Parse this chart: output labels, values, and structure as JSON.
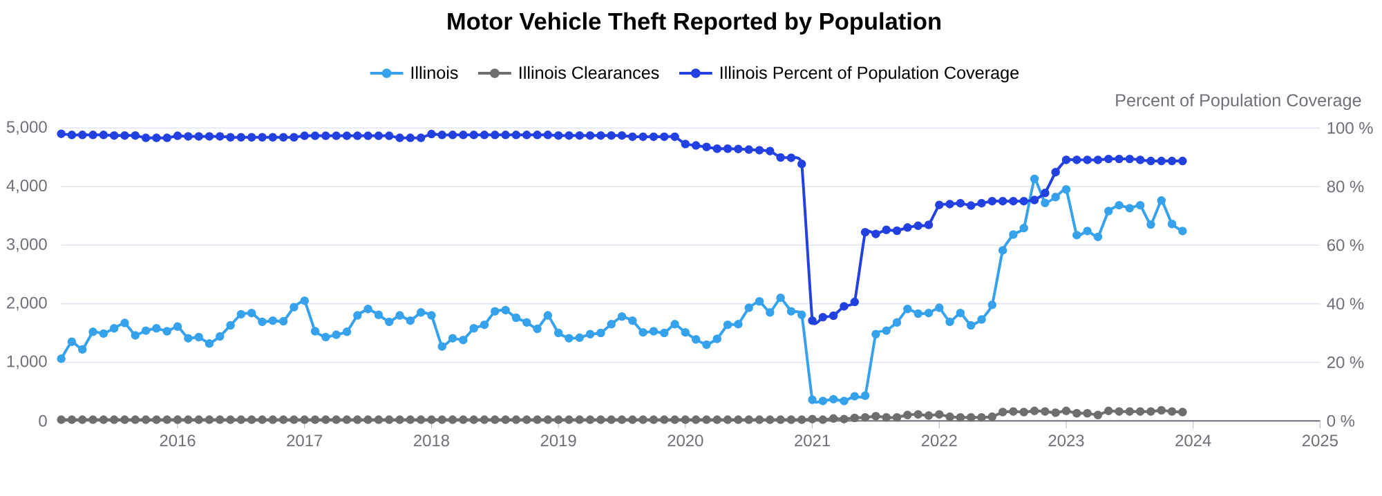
{
  "chart_data": {
    "type": "line",
    "title": "Motor Vehicle Theft Reported by Population",
    "y2label": "Percent of Population Coverage",
    "x": [
      "2015-02",
      "2015-03",
      "2015-04",
      "2015-05",
      "2015-06",
      "2015-07",
      "2015-08",
      "2015-09",
      "2015-10",
      "2015-11",
      "2015-12",
      "2016-01",
      "2016-02",
      "2016-03",
      "2016-04",
      "2016-05",
      "2016-06",
      "2016-07",
      "2016-08",
      "2016-09",
      "2016-10",
      "2016-11",
      "2016-12",
      "2017-01",
      "2017-02",
      "2017-03",
      "2017-04",
      "2017-05",
      "2017-06",
      "2017-07",
      "2017-08",
      "2017-09",
      "2017-10",
      "2017-11",
      "2017-12",
      "2018-01",
      "2018-02",
      "2018-03",
      "2018-04",
      "2018-05",
      "2018-06",
      "2018-07",
      "2018-08",
      "2018-09",
      "2018-10",
      "2018-11",
      "2018-12",
      "2019-01",
      "2019-02",
      "2019-03",
      "2019-04",
      "2019-05",
      "2019-06",
      "2019-07",
      "2019-08",
      "2019-09",
      "2019-10",
      "2019-11",
      "2019-12",
      "2020-01",
      "2020-02",
      "2020-03",
      "2020-04",
      "2020-05",
      "2020-06",
      "2020-07",
      "2020-08",
      "2020-09",
      "2020-10",
      "2020-11",
      "2020-12",
      "2021-01",
      "2021-02",
      "2021-03",
      "2021-04",
      "2021-05",
      "2021-06",
      "2021-07",
      "2021-08",
      "2021-09",
      "2021-10",
      "2021-11",
      "2021-12",
      "2022-01",
      "2022-02",
      "2022-03",
      "2022-04",
      "2022-05",
      "2022-06",
      "2022-07",
      "2022-08",
      "2022-09",
      "2022-10",
      "2022-11",
      "2022-12",
      "2023-01",
      "2023-02",
      "2023-03",
      "2023-04",
      "2023-05",
      "2023-06",
      "2023-07",
      "2023-08",
      "2023-09",
      "2023-10",
      "2023-11",
      "2023-12"
    ],
    "xlim": [
      "2015-02",
      "2025-01"
    ],
    "xticks": [
      "2016",
      "2017",
      "2018",
      "2019",
      "2020",
      "2021",
      "2022",
      "2023",
      "2024",
      "2025"
    ],
    "ylim": [
      0,
      5000
    ],
    "yticks": [
      0,
      {
        "value": 1000,
        "label": "1,000"
      },
      {
        "value": 2000,
        "label": "2,000"
      },
      {
        "value": 3000,
        "label": "3,000"
      },
      {
        "value": 4000,
        "label": "4,000"
      },
      {
        "value": 5000,
        "label": "5,000"
      }
    ],
    "y2lim": [
      0,
      100
    ],
    "y2ticks": [
      {
        "value": 0,
        "label": "0 %"
      },
      {
        "value": 20,
        "label": "20 %"
      },
      {
        "value": 40,
        "label": "40 %"
      },
      {
        "value": 60,
        "label": "60 %"
      },
      {
        "value": 80,
        "label": "80 %"
      },
      {
        "value": 100,
        "label": "100 %"
      }
    ],
    "grid": "y",
    "legend": "top",
    "marker": "circle",
    "series": [
      {
        "name": "Illinois",
        "color": "#36a2eb",
        "values": [
          1060,
          1350,
          1220,
          1520,
          1490,
          1580,
          1670,
          1460,
          1540,
          1580,
          1530,
          1610,
          1410,
          1430,
          1320,
          1440,
          1630,
          1820,
          1840,
          1690,
          1710,
          1700,
          1940,
          2050,
          1530,
          1430,
          1470,
          1520,
          1800,
          1910,
          1810,
          1690,
          1800,
          1710,
          1850,
          1800,
          1270,
          1410,
          1380,
          1580,
          1640,
          1870,
          1890,
          1760,
          1680,
          1570,
          1800,
          1500,
          1410,
          1420,
          1480,
          1500,
          1650,
          1780,
          1710,
          1510,
          1530,
          1500,
          1650,
          1510,
          1390,
          1300,
          1400,
          1640,
          1650,
          1930,
          2040,
          1850,
          2100,
          1870,
          1810,
          360,
          340,
          370,
          340,
          420,
          430,
          1480,
          1540,
          1680,
          1910,
          1830,
          1840,
          1930,
          1690,
          1840,
          1630,
          1730,
          1980,
          2910,
          3180,
          3290,
          4130,
          3720,
          3820,
          3950,
          3170,
          3240,
          3140,
          3580,
          3680,
          3630,
          3680,
          3350,
          3760,
          3360,
          3240
        ]
      },
      {
        "name": "Illinois Clearances",
        "color": "#6e6e6e",
        "values": [
          20,
          20,
          20,
          20,
          20,
          20,
          20,
          20,
          20,
          20,
          20,
          20,
          20,
          20,
          20,
          20,
          20,
          20,
          20,
          20,
          20,
          20,
          20,
          20,
          20,
          20,
          20,
          20,
          20,
          20,
          20,
          20,
          20,
          20,
          20,
          20,
          20,
          20,
          20,
          20,
          20,
          20,
          20,
          20,
          20,
          20,
          20,
          20,
          20,
          20,
          20,
          20,
          20,
          20,
          20,
          20,
          20,
          20,
          20,
          20,
          20,
          20,
          20,
          20,
          20,
          20,
          20,
          20,
          20,
          20,
          20,
          30,
          20,
          40,
          30,
          50,
          60,
          80,
          60,
          60,
          100,
          110,
          90,
          110,
          70,
          60,
          60,
          60,
          70,
          150,
          160,
          150,
          170,
          160,
          140,
          170,
          130,
          130,
          100,
          170,
          160,
          160,
          160,
          160,
          180,
          160,
          150
        ]
      },
      {
        "name": "Illinois Percent of Population Coverage",
        "color": "#2340e0",
        "axis": "y2",
        "values": [
          98.0,
          97.6,
          97.6,
          97.6,
          97.6,
          97.4,
          97.4,
          97.4,
          96.6,
          96.6,
          96.6,
          97.3,
          97.1,
          97.1,
          97.1,
          97.1,
          96.8,
          96.8,
          96.8,
          96.8,
          96.8,
          96.8,
          96.8,
          97.3,
          97.3,
          97.3,
          97.3,
          97.3,
          97.3,
          97.3,
          97.3,
          97.3,
          96.6,
          96.6,
          96.6,
          97.9,
          97.6,
          97.6,
          97.6,
          97.6,
          97.6,
          97.6,
          97.6,
          97.6,
          97.6,
          97.6,
          97.6,
          97.4,
          97.4,
          97.4,
          97.4,
          97.4,
          97.4,
          97.4,
          97.0,
          97.0,
          97.0,
          97.0,
          97.0,
          94.5,
          94.0,
          93.5,
          92.9,
          92.9,
          92.8,
          92.6,
          92.4,
          92.1,
          89.9,
          89.8,
          87.7,
          34.2,
          35.4,
          35.9,
          39.1,
          40.6,
          64.4,
          63.8,
          65.2,
          64.9,
          66.0,
          66.6,
          66.9,
          73.7,
          74.0,
          74.3,
          73.5,
          74.3,
          75.0,
          75.0,
          75.0,
          75.0,
          75.4,
          77.8,
          84.9,
          89.1,
          89.1,
          89.1,
          89.1,
          89.4,
          89.4,
          89.4,
          89.1,
          88.7,
          88.7,
          88.7,
          88.7
        ]
      }
    ]
  }
}
